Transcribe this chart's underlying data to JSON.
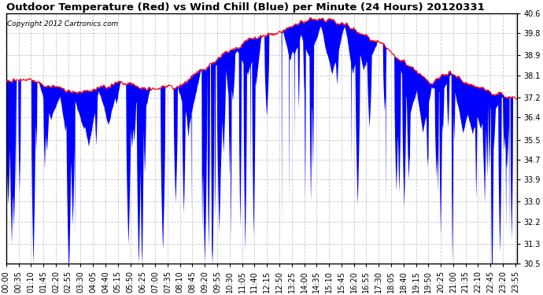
{
  "title": "Outdoor Temperature (Red) vs Wind Chill (Blue) per Minute (24 Hours) 20120331",
  "copyright": "Copyright 2012 Cartronics.com",
  "ylim": [
    30.5,
    40.6
  ],
  "yticks": [
    40.6,
    39.8,
    38.9,
    38.1,
    37.2,
    36.4,
    35.5,
    34.7,
    33.9,
    33.0,
    32.2,
    31.3,
    30.5
  ],
  "temp_color": "#FF0000",
  "wind_color": "#0000FF",
  "bg_color": "#FFFFFF",
  "grid_color": "#C8C8C8",
  "title_fontsize": 9.5,
  "copyright_fontsize": 6.5,
  "tick_fontsize": 7
}
